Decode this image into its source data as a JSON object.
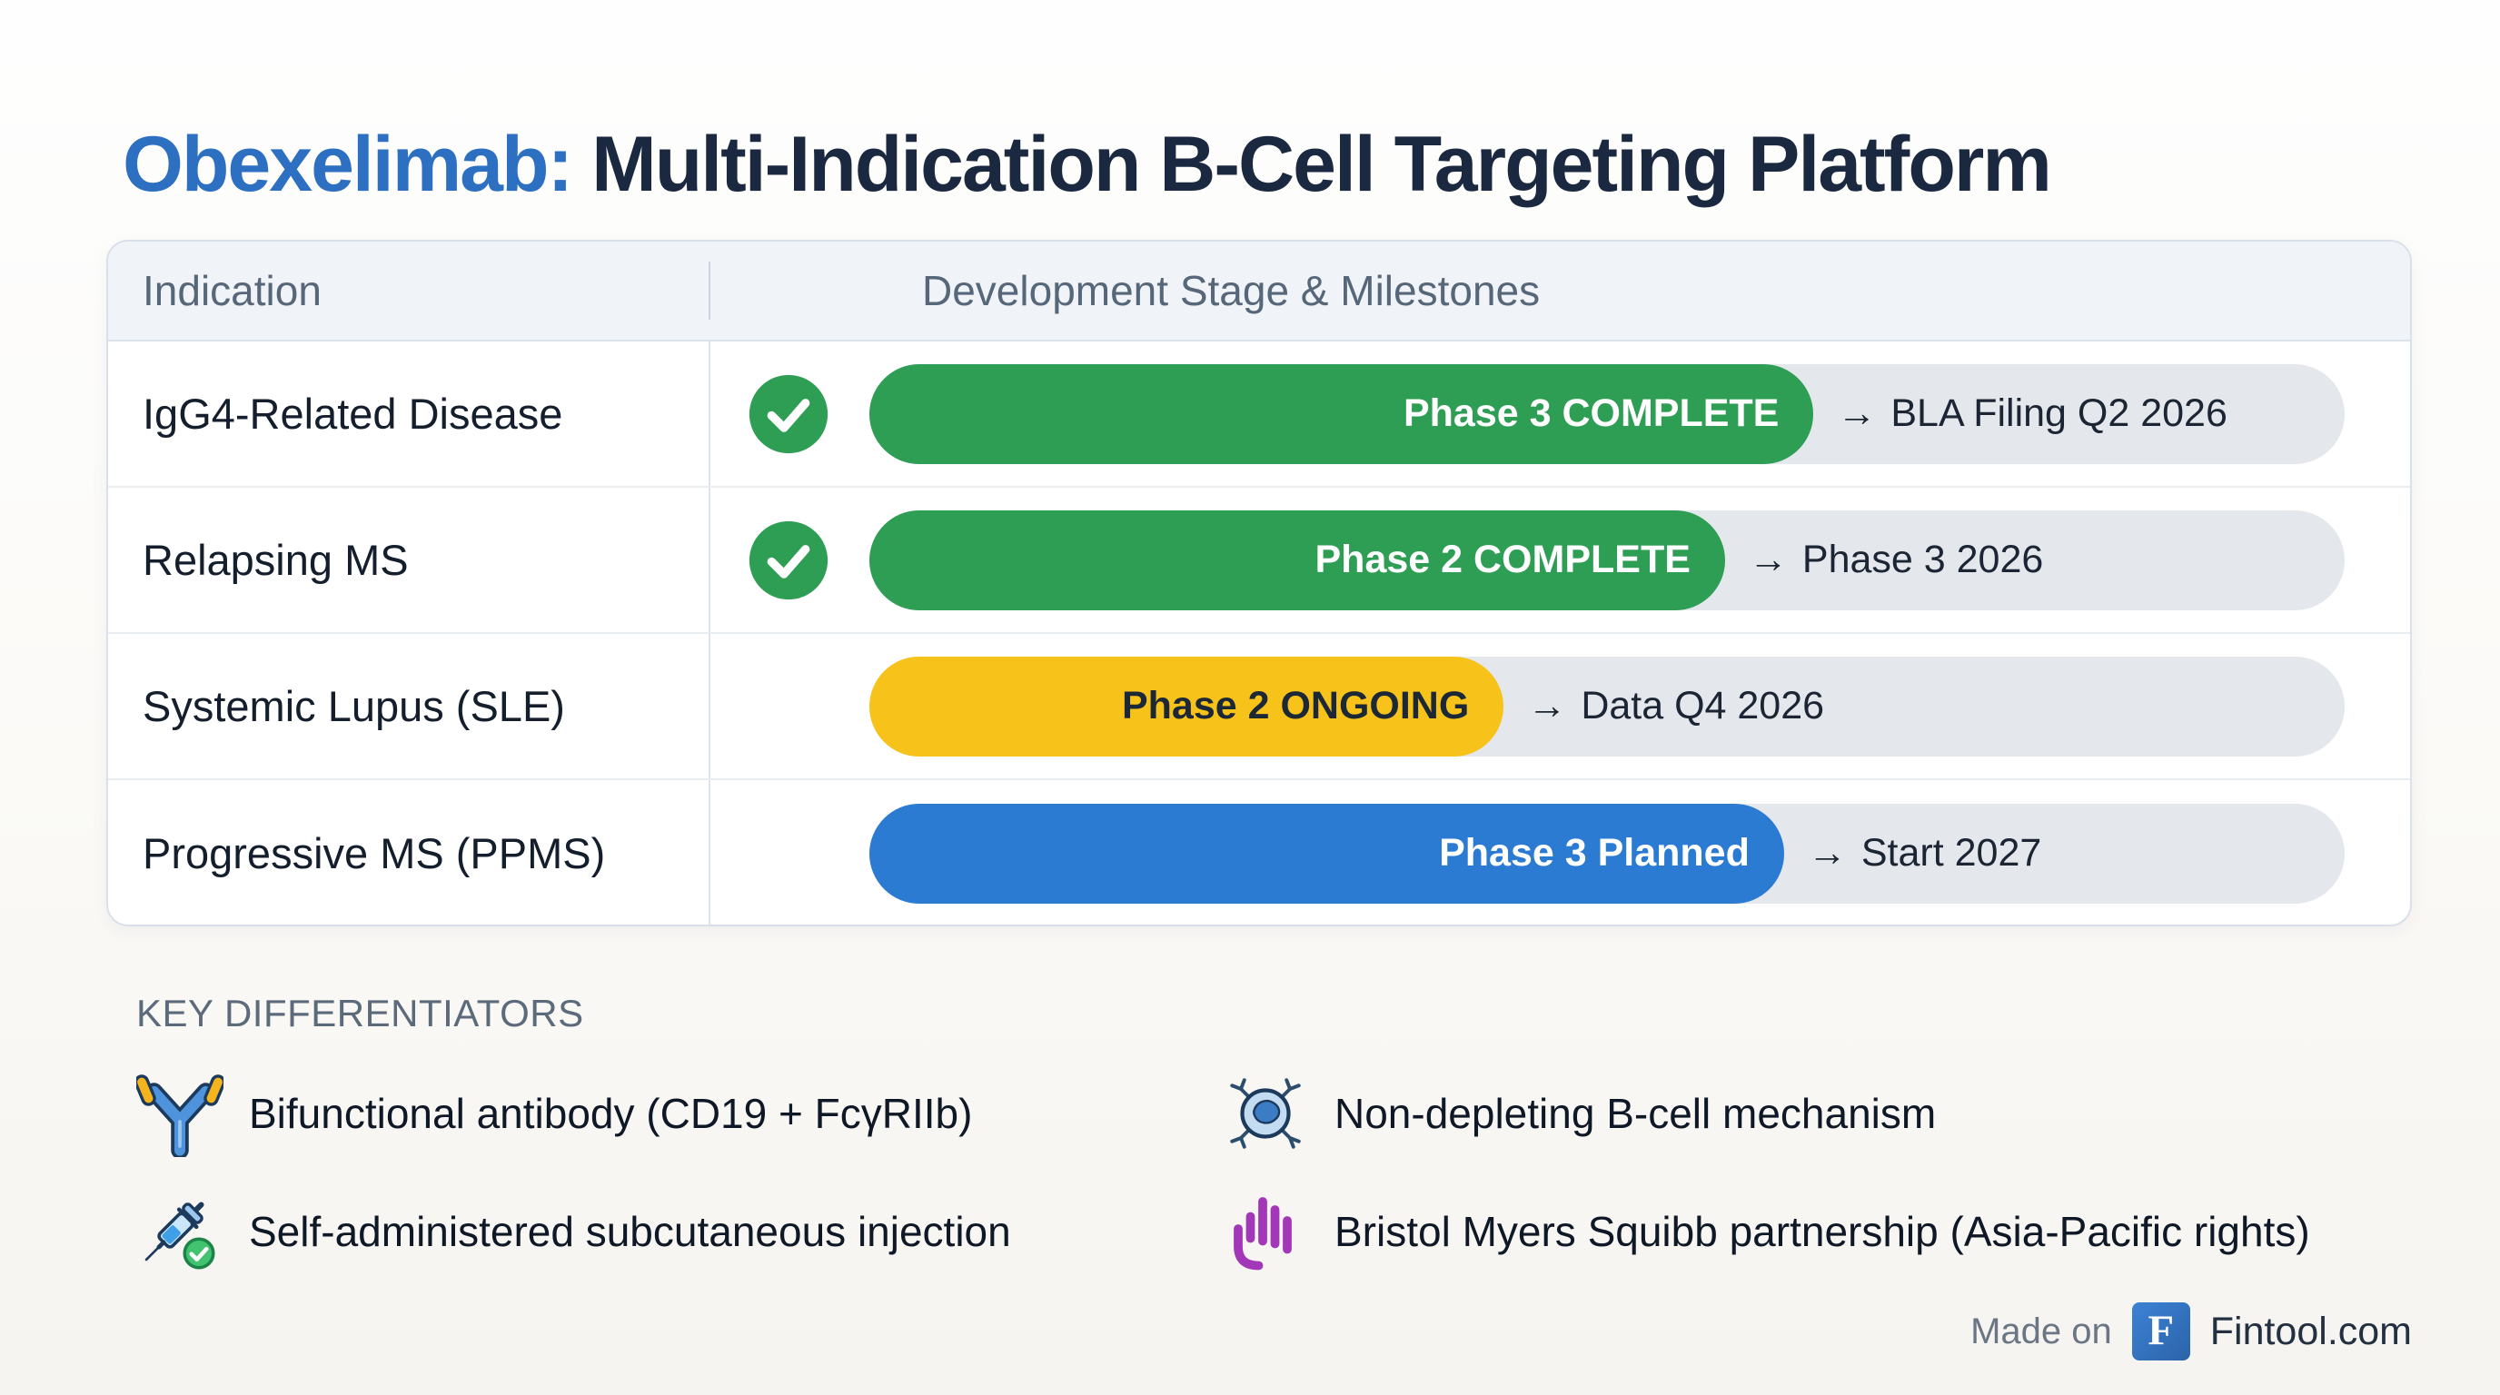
{
  "title": {
    "accent": "Obexelimab:",
    "rest": " Multi-Indication B-Cell Targeting Platform"
  },
  "table": {
    "columns": {
      "indication": "Indication",
      "stage": "Development Stage & Milestones"
    },
    "arrow": "→",
    "rows": [
      {
        "indication": "IgG4-Related Disease",
        "has_check": true,
        "phase_label": "Phase 3 COMPLETE",
        "phase_width_pct": 64,
        "phase_color": "#2E9E54",
        "phase_text_color": "#FFFFFF",
        "milestone": "BLA Filing Q2 2026"
      },
      {
        "indication": "Relapsing MS",
        "has_check": true,
        "phase_label": "Phase 2 COMPLETE",
        "phase_width_pct": 58,
        "phase_color": "#2E9E54",
        "phase_text_color": "#FFFFFF",
        "milestone": "Phase 3 2026"
      },
      {
        "indication": "Systemic Lupus (SLE)",
        "has_check": false,
        "phase_label": "Phase 2 ONGOING",
        "phase_width_pct": 43,
        "phase_color": "#F7C31B",
        "phase_text_color": "#1C2836",
        "milestone": "Data Q4 2026"
      },
      {
        "indication": "Progressive MS (PPMS)",
        "has_check": false,
        "phase_label": "Phase 3 Planned",
        "phase_width_pct": 62,
        "phase_color": "#2B7BD2",
        "phase_text_color": "#FFFFFF",
        "milestone": "Start 2027"
      }
    ]
  },
  "differentiators": {
    "heading": "KEY DIFFERENTIATORS",
    "items": [
      {
        "icon": "antibody-icon",
        "label": "Bifunctional antibody (CD19 + FcγRIIb)"
      },
      {
        "icon": "bcell-icon",
        "label": "Non-depleting B-cell mechanism"
      },
      {
        "icon": "syringe-icon",
        "label": "Self-administered subcutaneous injection"
      },
      {
        "icon": "hand-icon",
        "label": "Bristol Myers Squibb partnership (Asia-Pacific rights)"
      }
    ]
  },
  "footer": {
    "made_on": "Made on",
    "logo_letter": "F",
    "brand": "Fintool.com"
  },
  "colors": {
    "title_accent": "#2D6FC1",
    "title_main": "#1B2940",
    "complete_green": "#2E9E54",
    "ongoing_yellow": "#F7C31B",
    "planned_blue": "#2B7BD2",
    "track_gray": "#E4E7EC",
    "header_bg": "#F0F3F7",
    "partnership_purple": "#A237B8"
  }
}
